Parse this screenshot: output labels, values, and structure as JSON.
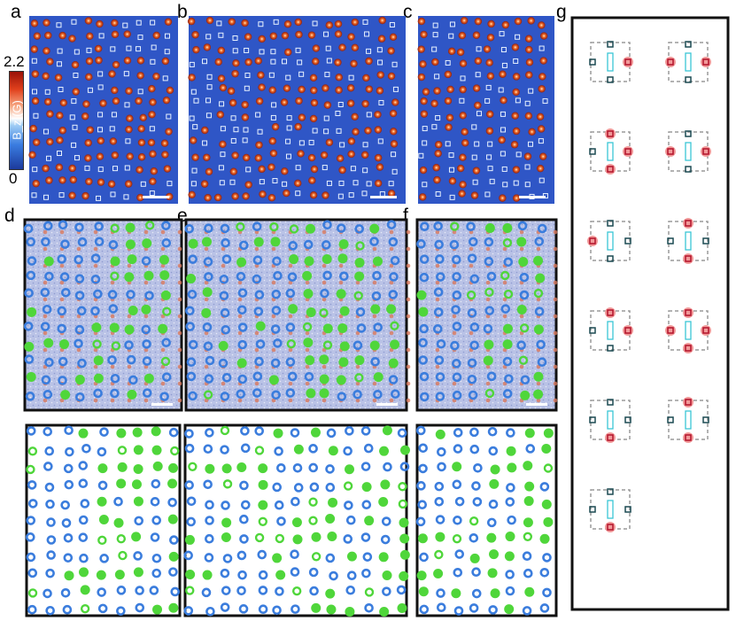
{
  "panel_labels": {
    "a": "a",
    "b": "b",
    "c": "c",
    "d": "d",
    "e": "e",
    "f": "f",
    "g": "g"
  },
  "colorbar": {
    "max": "2.2",
    "min": "0",
    "label": "B_z (G)"
  },
  "colors": {
    "map_blue": "#2f56c6",
    "vortex_red": "#e8491c",
    "open_blue": "#3b7ddd",
    "green": "#4fd63a",
    "pink": "#f19999",
    "cyan": "#3ac6d6",
    "grey_dash": "#9a9a9a"
  },
  "schematic_rows": 6
}
